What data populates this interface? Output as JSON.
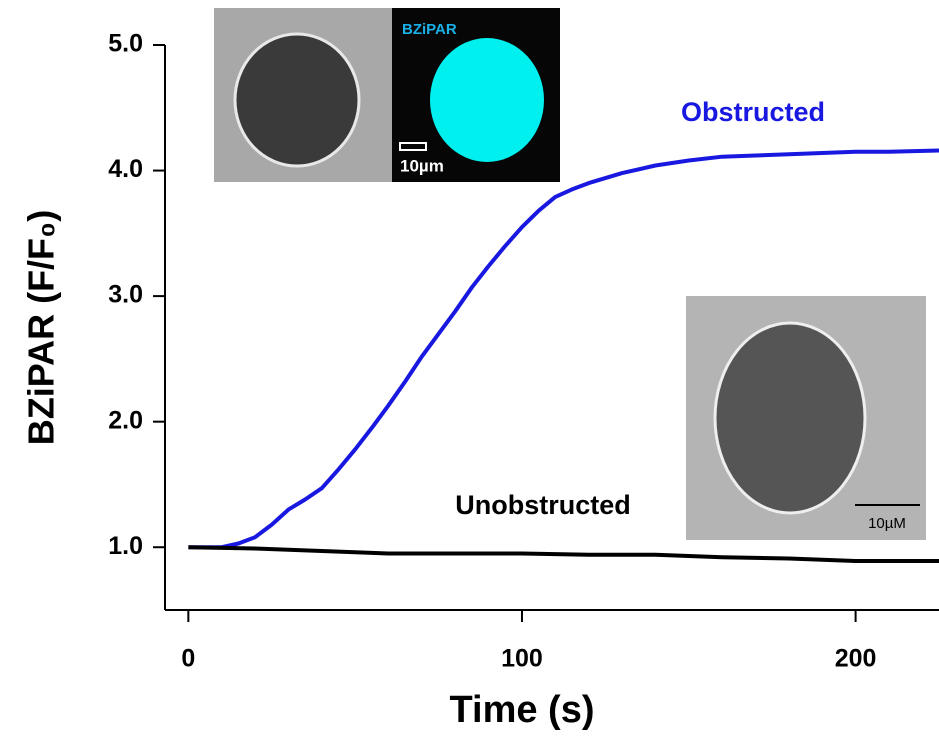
{
  "chart_data": {
    "type": "line",
    "xlabel": "Time (s)",
    "ylabel": "BZiPAR  (F/F₀)",
    "xlim": [
      -7,
      225
    ],
    "xticks": [
      0,
      100,
      200
    ],
    "ylim": [
      0.5,
      5.0
    ],
    "yticks": [
      {
        "value": 1,
        "label": "1.0"
      },
      {
        "value": 2,
        "label": "2.0"
      },
      {
        "value": 3,
        "label": "3.0"
      },
      {
        "value": 4,
        "label": "4.0"
      },
      {
        "value": 5,
        "label": "5.0"
      }
    ],
    "series": [
      {
        "name": "Obstructed",
        "color": "#1818e0",
        "x": [
          0,
          10,
          15,
          20,
          25,
          30,
          35,
          40,
          45,
          50,
          55,
          60,
          65,
          70,
          75,
          80,
          85,
          90,
          95,
          100,
          105,
          110,
          115,
          120,
          130,
          140,
          150,
          160,
          170,
          180,
          190,
          200,
          210,
          225
        ],
        "values": [
          1.0,
          1.0,
          1.03,
          1.08,
          1.18,
          1.3,
          1.38,
          1.47,
          1.62,
          1.78,
          1.95,
          2.13,
          2.32,
          2.52,
          2.7,
          2.88,
          3.07,
          3.24,
          3.4,
          3.55,
          3.68,
          3.79,
          3.85,
          3.9,
          3.98,
          4.04,
          4.08,
          4.11,
          4.12,
          4.13,
          4.14,
          4.15,
          4.15,
          4.16
        ]
      },
      {
        "name": "Unobstructed",
        "color": "#000000",
        "x": [
          0,
          20,
          40,
          60,
          80,
          100,
          120,
          140,
          160,
          180,
          200,
          225
        ],
        "values": [
          1.0,
          0.99,
          0.97,
          0.95,
          0.95,
          0.95,
          0.94,
          0.94,
          0.92,
          0.91,
          0.89,
          0.89
        ]
      }
    ]
  },
  "insets": [
    {
      "label": "BZiPAR",
      "scale": "10µm"
    },
    {
      "scale": "10µM"
    }
  ]
}
